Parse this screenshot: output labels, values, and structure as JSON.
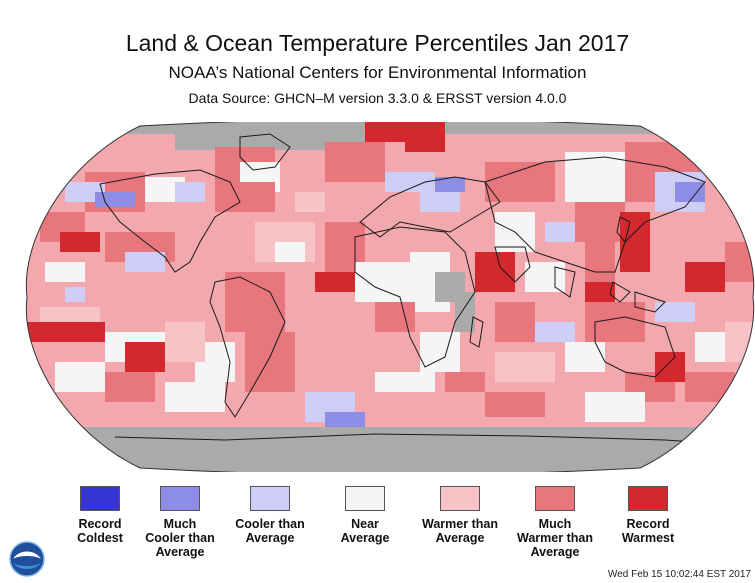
{
  "header": {
    "title": "Land & Ocean Temperature Percentiles Jan 2017",
    "subtitle": "NOAA’s National Centers for Environmental Information",
    "source": "Data Source: GHCN–M version 3.3.0 & ERSST version 4.0.0"
  },
  "map": {
    "projection": "robinson",
    "legend_categories": [
      {
        "key": "record_coldest",
        "label_lines": [
          "Record",
          "Coldest"
        ],
        "color": "#3535d4"
      },
      {
        "key": "much_cooler",
        "label_lines": [
          "Much",
          "Cooler than",
          "Average"
        ],
        "color": "#8d8de6"
      },
      {
        "key": "cooler",
        "label_lines": [
          "Cooler than",
          "Average"
        ],
        "color": "#cdcdf6"
      },
      {
        "key": "near",
        "label_lines": [
          "Near",
          "Average"
        ],
        "color": "#f5f5f5"
      },
      {
        "key": "warmer",
        "label_lines": [
          "Warmer than",
          "Average"
        ],
        "color": "#f7c3c6"
      },
      {
        "key": "much_warmer",
        "label_lines": [
          "Much",
          "Warmer than",
          "Average"
        ],
        "color": "#e8777d"
      },
      {
        "key": "record_warmest",
        "label_lines": [
          "Record",
          "Warmest"
        ],
        "color": "#d3282e"
      }
    ],
    "no_data_color": "#aaaaaa"
  },
  "footer": {
    "timestamp": "Wed Feb 15 10:02:44 EST 2017"
  },
  "logo": {
    "icon": "noaa-logo-icon",
    "text": "noaa"
  }
}
